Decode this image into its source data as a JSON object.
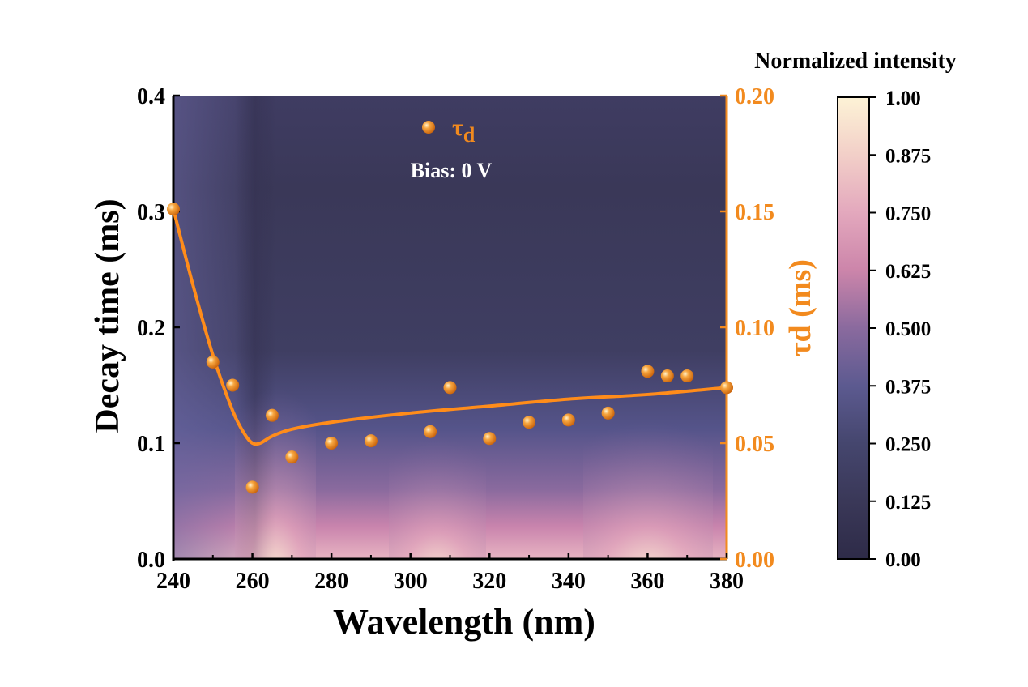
{
  "chart_data": {
    "type": "scatter",
    "xlabel": "Wavelength (nm)",
    "ylabel_left": "Decay time (ms)",
    "ylabel_right": "τd (ms)",
    "xlim": [
      240,
      380
    ],
    "ylim_left": [
      0.0,
      0.4
    ],
    "ylim_right": [
      0.0,
      0.2
    ],
    "x_ticks": [
      "240",
      "260",
      "280",
      "300",
      "320",
      "340",
      "360",
      "380"
    ],
    "y_left_ticks": [
      "0.0",
      "0.1",
      "0.2",
      "0.3",
      "0.4"
    ],
    "y_right_ticks": [
      "0.00",
      "0.05",
      "0.10",
      "0.15",
      "0.20"
    ],
    "annotation": "Bias: 0 V",
    "legend": {
      "label": "τ",
      "subscript": "d",
      "placement": "top-center"
    },
    "colorbar": {
      "title": "Normalized intensity",
      "ticks": [
        "0.00",
        "0.125",
        "0.250",
        "0.375",
        "0.500",
        "0.625",
        "0.750",
        "0.875",
        "1.00"
      ],
      "range": [
        0,
        1
      ],
      "colors": [
        "#2e2b48",
        "#3a3858",
        "#45466e",
        "#5c5a90",
        "#8a6a9e",
        "#cc85aa",
        "#e3a8bd",
        "#f2cfc8",
        "#fdf3d6"
      ]
    },
    "series": [
      {
        "name": "τd",
        "axis": "right",
        "color": "#f28a1e",
        "x": [
          240,
          250,
          255,
          260,
          265,
          270,
          280,
          290,
          305,
          310,
          320,
          330,
          340,
          350,
          360,
          365,
          370,
          380
        ],
        "y": [
          0.151,
          0.085,
          0.075,
          0.031,
          0.062,
          0.044,
          0.05,
          0.051,
          0.055,
          0.074,
          0.052,
          0.059,
          0.06,
          0.063,
          0.081,
          0.079,
          0.079,
          0.074
        ]
      },
      {
        "kind": "fit",
        "axis": "right",
        "color": "#ff8c1a",
        "x": [
          240,
          245,
          250,
          255,
          258,
          260,
          262,
          265,
          270,
          280,
          300,
          320,
          340,
          360,
          380
        ],
        "y": [
          0.151,
          0.118,
          0.088,
          0.064,
          0.054,
          0.05,
          0.05,
          0.053,
          0.056,
          0.059,
          0.063,
          0.066,
          0.069,
          0.071,
          0.074
        ]
      }
    ],
    "heatmap_description_levels": {
      "background_level": 0.2,
      "bright_bands_nm": [
        265,
        310,
        360
      ]
    }
  }
}
